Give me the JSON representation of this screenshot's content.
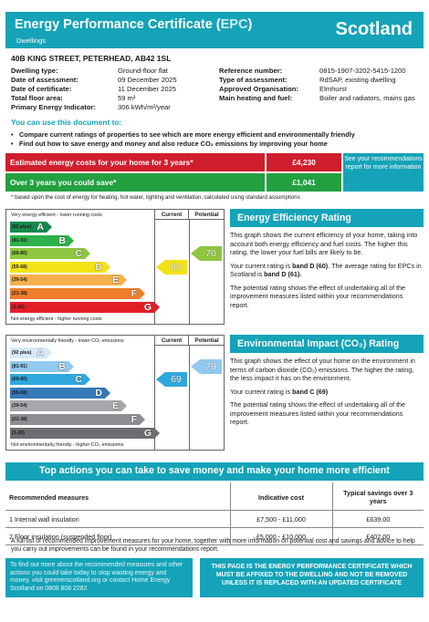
{
  "header": {
    "title_pre": "Energy Performance Certificate (",
    "title_epc": "EPC",
    "title_post": ")",
    "subtitle": "Dwellings",
    "country": "Scotland"
  },
  "address": "40B KING STREET, PETERHEAD, AB42 1SL",
  "details_left": [
    {
      "label": "Dwelling type:",
      "value": "Ground-floor flat"
    },
    {
      "label": "Date of assessment:",
      "value": "09 December 2025"
    },
    {
      "label": "Date of certificate:",
      "value": "11 December 2025"
    },
    {
      "label": "Total floor area:",
      "value": "59 m²"
    },
    {
      "label": "Primary Energy Indicator:",
      "value": "306 kWh/m²/year"
    }
  ],
  "details_right": [
    {
      "label": "Reference number:",
      "value": "0815-1907-3202-5415-1200"
    },
    {
      "label": "Type of assessment:",
      "value": "RdSAP, existing dwelling"
    },
    {
      "label": "Approved Organisation:",
      "value": "Elmhurst"
    },
    {
      "label": "Main heating and fuel:",
      "value": "Boiler and radiators, mains gas"
    }
  ],
  "use_title": "You can use this document to:",
  "bullets": [
    "Compare current ratings of properties to see which are more energy efficient and environmentally friendly",
    "Find out how to save energy and money and also reduce CO₂ emissions by improving your home"
  ],
  "costs": {
    "estimated_label": "Estimated energy costs for your home for 3 years*",
    "estimated_value": "£4,230",
    "save_label": "Over 3 years you could save*",
    "save_value": "£1,041",
    "recommendation_box": "See your recommendations report for more information",
    "footnote": "* based upon the cost of energy for heating, hot water, lighting and ventilation, calculated using standard assumptions"
  },
  "efficiency_chart": {
    "top_label": "Very energy efficient - lower running costs",
    "bottom_label": "Not energy efficient - higher running costs",
    "current_header": "Current",
    "potential_header": "Potential",
    "current": 60,
    "potential": 70,
    "current_band": "D",
    "potential_band": "C",
    "bands": [
      {
        "range": "(92 plus)",
        "letter": "A",
        "color": "#138a4d"
      },
      {
        "range": "(81-91)",
        "letter": "B",
        "color": "#2db14a"
      },
      {
        "range": "(69-80)",
        "letter": "C",
        "color": "#8ec63f"
      },
      {
        "range": "(55-68)",
        "letter": "D",
        "color": "#f2e318"
      },
      {
        "range": "(39-54)",
        "letter": "E",
        "color": "#f5b04b"
      },
      {
        "range": "(21-38)",
        "letter": "F",
        "color": "#ef7d2c"
      },
      {
        "range": "(1-20)",
        "letter": "G",
        "color": "#e21f26"
      }
    ]
  },
  "impact_chart": {
    "top_label": "Very environmentally friendly - lower CO₂ emissions",
    "bottom_label": "Not environmentally friendly - higher CO₂ emissions",
    "current_header": "Current",
    "potential_header": "Potential",
    "current": 69,
    "potential": 79,
    "current_band": "C",
    "potential_band": "B",
    "bands": [
      {
        "range": "(92 plus)",
        "letter": "A",
        "color": "#d4eaf7"
      },
      {
        "range": "(81-91)",
        "letter": "B",
        "color": "#91c9ef"
      },
      {
        "range": "(69-80)",
        "letter": "C",
        "color": "#2fa7dd"
      },
      {
        "range": "(55-68)",
        "letter": "D",
        "color": "#3679b8"
      },
      {
        "range": "(39-54)",
        "letter": "E",
        "color": "#a5a7aa"
      },
      {
        "range": "(21-38)",
        "letter": "F",
        "color": "#8c8e91"
      },
      {
        "range": "(1-20)",
        "letter": "G",
        "color": "#6b6d70"
      }
    ]
  },
  "efficiency_info": {
    "title": "Energy Efficiency Rating",
    "p1": "This graph shows the current efficiency of your home, taking into account both energy efficiency and fuel costs. The higher this rating, the lower your fuel bills are likely to be.",
    "p2_a": "Your current rating is ",
    "p2_b": "band D (60)",
    "p2_c": ". The average rating for EPCs in Scotland is ",
    "p2_d": "band D (61).",
    "p3": "The potential rating shows the effect of undertaking all of the improvement measures listed within your recommendations report."
  },
  "impact_info": {
    "title": "Environmental Impact (CO₂) Rating",
    "p1": "This graph shows the effect of your home on the environment in terms of carbon dioxide (CO₂) emissions. The higher the rating, the less impact it has on the environment.",
    "p2_a": "Your current rating is ",
    "p2_b": "band C (69)",
    "p3": "The potential rating shows the effect of undertaking all of the improvement measures listed within your recommendations report."
  },
  "actions": {
    "title": "Top actions you can take to save money and make your home more efficient",
    "headers": [
      "Recommended measures",
      "Indicative cost",
      "Typical savings over 3 years"
    ],
    "rows": [
      [
        "1 Internal wall insulation",
        "£7,500 - £11,000",
        "£639.00"
      ],
      [
        "2 Floor insulation (suspended floor)",
        "£5,000 - £10,000",
        "£402.00"
      ]
    ]
  },
  "full_list": "A full list of recommended improvement measures for your home, together with more information on potential cost and savings and advice to help you carry out improvements can be found in your recommendations report.",
  "find_out_box": "To find out more about the recommended measures and other actions you could take today to stop wasting energy and money, visit greenerscotland.org or contact Home Energy Scotland on 0808 808 2282.",
  "certificate_box": "THIS PAGE IS THE ENERGY PERFORMANCE CERTIFICATE WHICH MUST BE AFFIXED TO THE DWELLING AND NOT BE REMOVED UNLESS IT IS REPLACED WITH AN UPDATED CERTIFICATE"
}
